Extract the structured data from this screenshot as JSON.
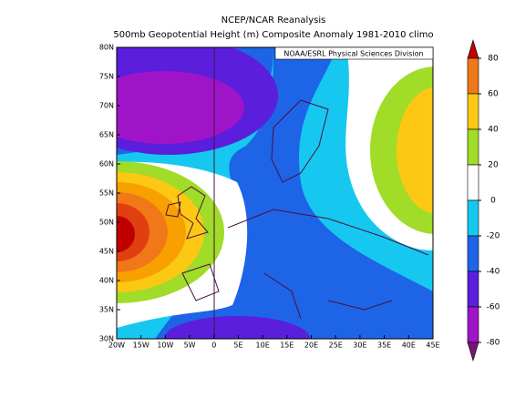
{
  "title": [
    "NCEP/NCAR Reanalysis",
    "500mb Geopotential Height (m) Composite Anomaly 1981-2010 climo"
  ],
  "credit": "NOAA/ESRL Physical Sciences Division",
  "lat_labels": [
    "80N",
    "75N",
    "70N",
    "65N",
    "60N",
    "55N",
    "50N",
    "45N",
    "40N",
    "35N",
    "30N"
  ],
  "lon_labels": [
    "20W",
    "15W",
    "10W",
    "5W",
    "0",
    "5E",
    "10E",
    "15E",
    "20E",
    "25E",
    "30E",
    "35E",
    "40E",
    "45E"
  ],
  "colorbar": {
    "ticks": [
      80,
      60,
      40,
      20,
      0,
      -20,
      -40,
      -60,
      -80
    ],
    "colors": [
      "#c00000",
      "#f07818",
      "#fcc814",
      "#a0dc28",
      "#ffffff",
      "#16c8f0",
      "#1e64e6",
      "#5a1edc",
      "#a014c8",
      "#781478"
    ]
  }
}
